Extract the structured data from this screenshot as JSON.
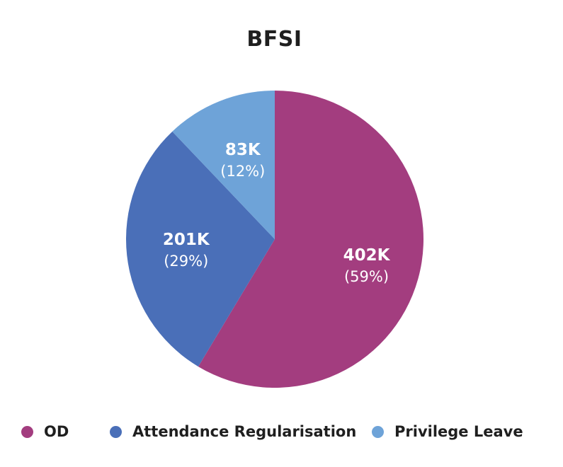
{
  "chart_data": {
    "type": "pie",
    "title": "BFSI",
    "categories": [
      "OD",
      "Attendance Regularisation",
      "Privilege Leave"
    ],
    "values": [
      402,
      201,
      83
    ],
    "value_labels": [
      "402K",
      "201K",
      "83K"
    ],
    "percent_labels": [
      "(59%)",
      "(29%)",
      "(12%)"
    ],
    "colors": [
      "#a33d7f",
      "#4a6fb8",
      "#6ea3d8"
    ],
    "legend_position": "bottom"
  }
}
